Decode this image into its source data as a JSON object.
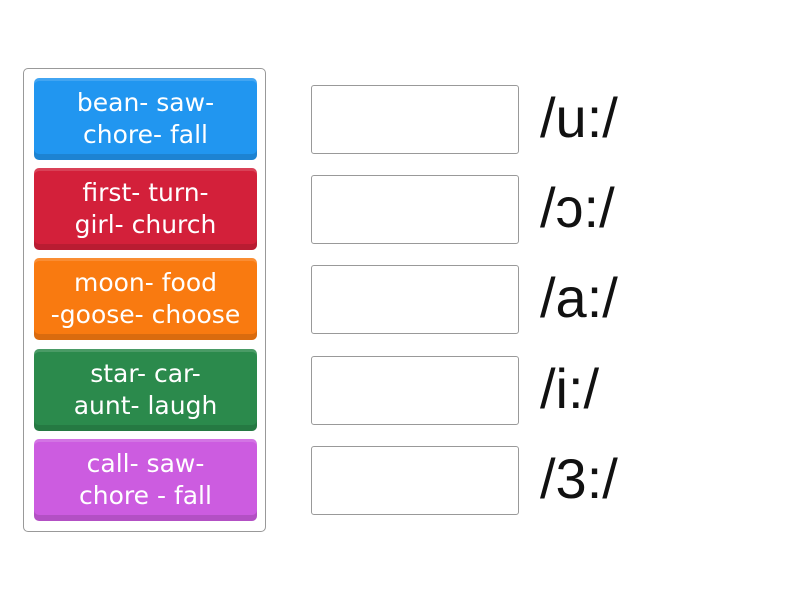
{
  "tiles": [
    {
      "label": "bean- saw-\nchore- fall",
      "color": "#2196f0"
    },
    {
      "label": "first- turn-\ngirl- church",
      "color": "#d3203a"
    },
    {
      "label": "moon- food\n-goose- choose",
      "color": "#f97a10"
    },
    {
      "label": "star- car-\naunt- laugh",
      "color": "#2b8a4c"
    },
    {
      "label": "call- saw-\nchore - fall",
      "color": "#cc5ce0"
    }
  ],
  "targets": [
    {
      "symbol": "/u:/",
      "value": ""
    },
    {
      "symbol": "/ɔ:/",
      "value": ""
    },
    {
      "symbol": "/a:/",
      "value": ""
    },
    {
      "symbol": "/i:/",
      "value": ""
    },
    {
      "symbol": "/3:/",
      "value": ""
    }
  ]
}
